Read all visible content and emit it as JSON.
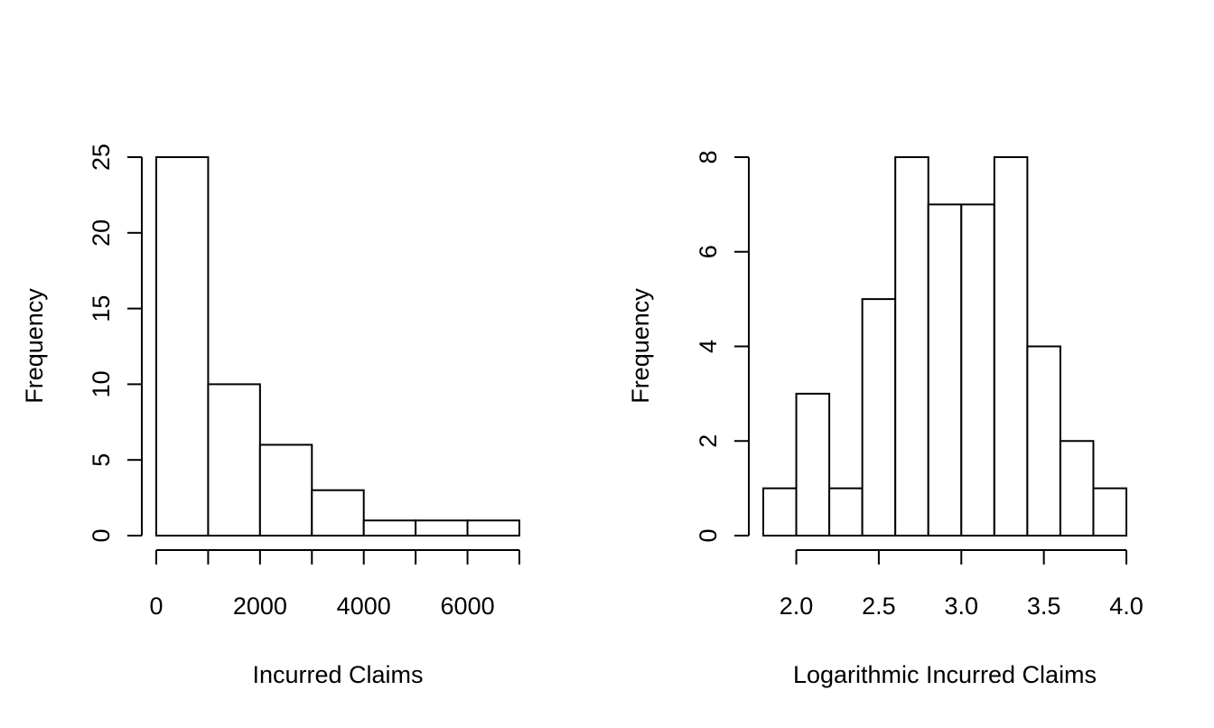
{
  "chart_data": [
    {
      "type": "bar",
      "subtype": "histogram",
      "title": "",
      "xlabel": "Incurred Claims",
      "ylabel": "Frequency",
      "bin_edges": [
        0,
        1000,
        2000,
        3000,
        4000,
        5000,
        6000,
        7000
      ],
      "values": [
        25,
        10,
        6,
        3,
        1,
        1,
        1
      ],
      "xlim": [
        0,
        7000
      ],
      "ylim": [
        0,
        25
      ],
      "x_ticks": [
        0,
        1000,
        2000,
        3000,
        4000,
        5000,
        6000,
        7000
      ],
      "x_tick_labels": [
        "0",
        "",
        "2000",
        "",
        "4000",
        "",
        "6000",
        ""
      ],
      "y_ticks": [
        0,
        5,
        10,
        15,
        20,
        25
      ],
      "y_tick_labels": [
        "0",
        "5",
        "10",
        "15",
        "20",
        "25"
      ],
      "grid": false,
      "legend": "none"
    },
    {
      "type": "bar",
      "subtype": "histogram",
      "title": "",
      "xlabel": "Logarithmic Incurred Claims",
      "ylabel": "Frequency",
      "bin_edges": [
        1.8,
        2.0,
        2.2,
        2.4,
        2.6,
        2.8,
        3.0,
        3.2,
        3.4,
        3.6,
        3.8,
        4.0
      ],
      "values": [
        1,
        3,
        1,
        5,
        8,
        7,
        7,
        8,
        4,
        2,
        1
      ],
      "xlim": [
        1.8,
        4.0
      ],
      "ylim": [
        0,
        8
      ],
      "x_ticks": [
        2.0,
        2.5,
        3.0,
        3.5,
        4.0
      ],
      "x_tick_labels": [
        "2.0",
        "2.5",
        "3.0",
        "3.5",
        "4.0"
      ],
      "y_ticks": [
        0,
        2,
        4,
        6,
        8
      ],
      "y_tick_labels": [
        "0",
        "2",
        "4",
        "6",
        "8"
      ],
      "grid": false,
      "legend": "none"
    }
  ]
}
